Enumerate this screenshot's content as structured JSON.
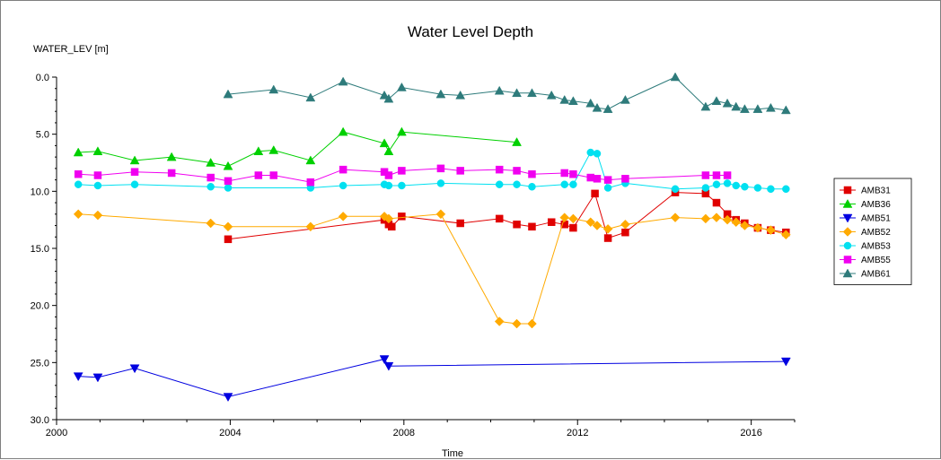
{
  "chart_data": {
    "type": "line",
    "title": "Water Level Depth",
    "ylabel": "WATER_LEV [m]",
    "xlabel": "Time",
    "xlim": [
      2000,
      2017
    ],
    "ylim": [
      0,
      30
    ],
    "y_inverted": true,
    "x_ticks": [
      2000,
      2004,
      2008,
      2012,
      2016
    ],
    "x_tick_labels": [
      "2000",
      "2004",
      "2008",
      "2012",
      "2016"
    ],
    "y_ticks": [
      0,
      5,
      10,
      15,
      20,
      25,
      30
    ],
    "y_tick_labels": [
      "0.0",
      "5.0",
      "10.0",
      "15.0",
      "20.0",
      "25.0",
      "30.0"
    ],
    "grid": false,
    "legend_position": "right",
    "series": [
      {
        "name": "AMB31",
        "color": "#e00000",
        "marker": "square",
        "x": [
          2003.95,
          2007.55,
          2007.65,
          2007.72,
          2007.95,
          2009.3,
          2010.2,
          2010.6,
          2010.95,
          2011.4,
          2011.7,
          2011.9,
          2012.4,
          2012.7,
          2013.1,
          2014.25,
          2014.95,
          2015.2,
          2015.45,
          2015.65,
          2015.85,
          2016.15,
          2016.45,
          2016.8
        ],
        "y": [
          14.2,
          12.5,
          12.9,
          13.1,
          12.2,
          12.8,
          12.4,
          12.9,
          13.1,
          12.7,
          12.9,
          13.2,
          10.2,
          14.1,
          13.6,
          10.1,
          10.2,
          11.0,
          12.0,
          12.5,
          12.8,
          13.2,
          13.4,
          13.6
        ]
      },
      {
        "name": "AMB36",
        "color": "#00d000",
        "marker": "triangle-up",
        "x": [
          2000.5,
          2000.95,
          2001.8,
          2002.65,
          2003.55,
          2003.95,
          2004.65,
          2005.0,
          2005.85,
          2006.6,
          2007.55,
          2007.65,
          2007.95,
          2010.6
        ],
        "y": [
          6.6,
          6.5,
          7.3,
          7.0,
          7.5,
          7.8,
          6.5,
          6.4,
          7.3,
          4.8,
          5.8,
          6.5,
          4.8,
          5.7
        ]
      },
      {
        "name": "AMB51",
        "color": "#0000e0",
        "marker": "triangle-down",
        "x": [
          2000.5,
          2000.95,
          2001.8,
          2003.95,
          2007.55,
          2007.65,
          2016.8
        ],
        "y": [
          26.2,
          26.3,
          25.5,
          28.0,
          24.7,
          25.3,
          24.9
        ]
      },
      {
        "name": "AMB52",
        "color": "#ffaa00",
        "marker": "diamond",
        "x": [
          2000.5,
          2000.95,
          2003.55,
          2003.95,
          2005.85,
          2006.6,
          2007.55,
          2007.65,
          2008.85,
          2010.2,
          2010.6,
          2010.95,
          2011.7,
          2011.9,
          2012.3,
          2012.45,
          2012.7,
          2013.1,
          2014.25,
          2014.95,
          2015.2,
          2015.45,
          2015.65,
          2015.85,
          2016.15,
          2016.45,
          2016.8
        ],
        "y": [
          12.0,
          12.1,
          12.8,
          13.1,
          13.1,
          12.2,
          12.2,
          12.4,
          12.0,
          21.4,
          21.6,
          21.6,
          12.3,
          12.4,
          12.7,
          13.0,
          13.3,
          12.9,
          12.3,
          12.4,
          12.3,
          12.5,
          12.7,
          13.0,
          13.2,
          13.4,
          13.8
        ]
      },
      {
        "name": "AMB53",
        "color": "#00e0f0",
        "marker": "circle",
        "x": [
          2000.5,
          2000.95,
          2001.8,
          2003.55,
          2003.95,
          2005.85,
          2006.6,
          2007.55,
          2007.65,
          2007.95,
          2008.85,
          2010.2,
          2010.6,
          2010.95,
          2011.7,
          2011.9,
          2012.3,
          2012.45,
          2012.7,
          2013.1,
          2014.25,
          2014.95,
          2015.2,
          2015.45,
          2015.65,
          2015.85,
          2016.15,
          2016.45,
          2016.8
        ],
        "y": [
          9.4,
          9.5,
          9.4,
          9.6,
          9.7,
          9.7,
          9.5,
          9.4,
          9.5,
          9.5,
          9.3,
          9.4,
          9.4,
          9.6,
          9.4,
          9.4,
          6.6,
          6.7,
          9.7,
          9.3,
          9.8,
          9.7,
          9.4,
          9.3,
          9.5,
          9.6,
          9.7,
          9.8,
          9.8
        ]
      },
      {
        "name": "AMB55",
        "color": "#f000f0",
        "marker": "square",
        "x": [
          2000.5,
          2000.95,
          2001.8,
          2002.65,
          2003.55,
          2003.95,
          2004.65,
          2005.0,
          2005.85,
          2006.6,
          2007.55,
          2007.65,
          2007.95,
          2008.85,
          2009.3,
          2010.2,
          2010.6,
          2010.95,
          2011.7,
          2011.9,
          2012.3,
          2012.45,
          2012.7,
          2013.1,
          2014.95,
          2015.2,
          2015.45
        ],
        "y": [
          8.5,
          8.6,
          8.3,
          8.4,
          8.8,
          9.1,
          8.6,
          8.6,
          9.2,
          8.1,
          8.3,
          8.6,
          8.2,
          8.0,
          8.2,
          8.1,
          8.2,
          8.5,
          8.4,
          8.5,
          8.8,
          8.9,
          9.0,
          8.9,
          8.6,
          8.6,
          8.6
        ]
      },
      {
        "name": "AMB61",
        "color": "#2e7b7b",
        "marker": "triangle-up",
        "x": [
          2003.95,
          2005.0,
          2005.85,
          2006.6,
          2007.55,
          2007.65,
          2007.95,
          2008.85,
          2009.3,
          2010.2,
          2010.6,
          2010.95,
          2011.4,
          2011.7,
          2011.9,
          2012.3,
          2012.45,
          2012.7,
          2013.1,
          2014.25,
          2014.95,
          2015.2,
          2015.45,
          2015.65,
          2015.85,
          2016.15,
          2016.45,
          2016.8
        ],
        "y": [
          1.5,
          1.1,
          1.8,
          0.4,
          1.6,
          1.9,
          0.9,
          1.5,
          1.6,
          1.2,
          1.4,
          1.4,
          1.6,
          2.0,
          2.1,
          2.3,
          2.7,
          2.8,
          2.0,
          0.0,
          2.6,
          2.1,
          2.3,
          2.6,
          2.8,
          2.8,
          2.7,
          2.9
        ]
      }
    ]
  }
}
